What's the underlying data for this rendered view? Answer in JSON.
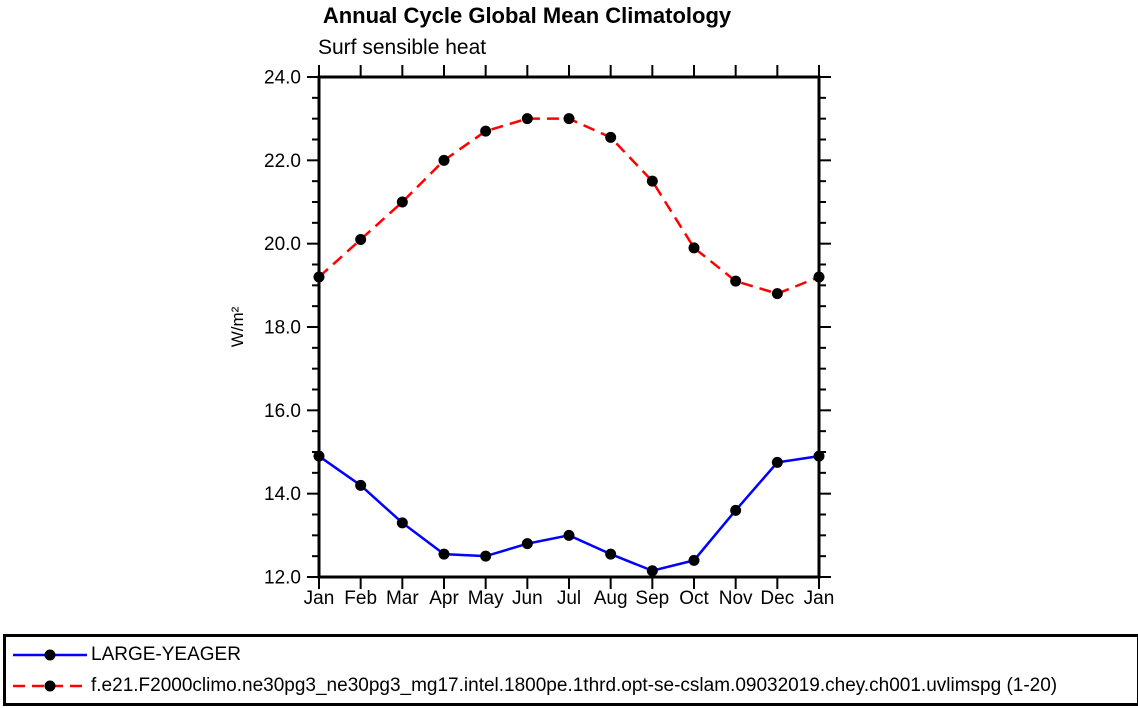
{
  "title": "Annual Cycle Global Mean Climatology",
  "subtitle": "Surf sensible heat",
  "ylabel": "W/m²",
  "chart_data": {
    "type": "line",
    "title": "Annual Cycle Global Mean Climatology",
    "subtitle": "Surf sensible heat",
    "ylabel": "W/m²",
    "x_categories": [
      "Jan",
      "Feb",
      "Mar",
      "Apr",
      "May",
      "Jun",
      "Jul",
      "Aug",
      "Sep",
      "Oct",
      "Nov",
      "Dec",
      "Jan"
    ],
    "ylim": [
      12.0,
      24.0
    ],
    "y_major_tick_step": 2.0,
    "y_minor_tick_step": 0.5,
    "y_major_ticklabels": [
      "12.0",
      "14.0",
      "16.0",
      "18.0",
      "20.0",
      "22.0",
      "24.0"
    ],
    "grid": false,
    "axis_color": "#000000",
    "marker_color": "#000000",
    "legend_position": "bottom-left-box",
    "series": [
      {
        "name": "LARGE-YEAGER",
        "color": "#0000ff",
        "line_style": "solid",
        "marker": "filled-circle",
        "values": [
          14.9,
          14.2,
          13.3,
          12.55,
          12.5,
          12.8,
          13.0,
          12.55,
          12.15,
          12.4,
          13.6,
          14.75,
          14.9
        ]
      },
      {
        "name": "f.e21.F2000climo.ne30pg3_ne30pg3_mg17.intel.1800pe.1thrd.opt-se-cslam.09032019.chey.ch001.uvlimspg (1-20)",
        "color": "#ff0000",
        "line_style": "dashed",
        "marker": "filled-circle",
        "values": [
          19.2,
          20.1,
          21.0,
          22.0,
          22.7,
          23.0,
          23.0,
          22.55,
          21.5,
          19.9,
          19.1,
          18.8,
          19.2
        ]
      }
    ]
  }
}
